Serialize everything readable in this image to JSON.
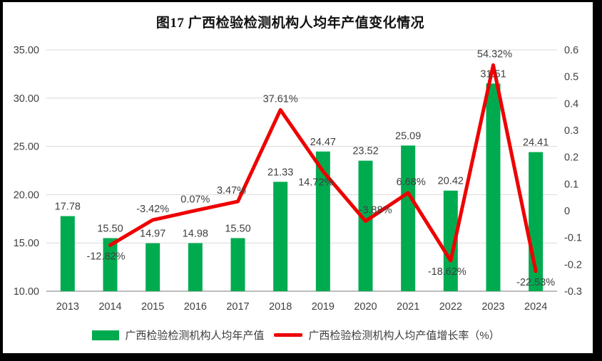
{
  "title": "图17  广西检验检测机构人均年产值变化情况",
  "legend": [
    {
      "swatch": "bar",
      "color": "#00AB50",
      "label": "广西检验检测机构人均年产值"
    },
    {
      "swatch": "line",
      "color": "#EE0000",
      "label": "广西检验检测机构人均产值增长率（%）"
    }
  ],
  "chart_data": {
    "type": "combo-bar-line",
    "title": "图17  广西检验检测机构人均年产值变化情况",
    "categories": [
      "2013",
      "2014",
      "2015",
      "2016",
      "2017",
      "2018",
      "2019",
      "2020",
      "2021",
      "2022",
      "2023",
      "2024"
    ],
    "series": [
      {
        "name": "广西检验检测机构人均年产值",
        "type": "bar",
        "axis": "left",
        "color": "#00AB50",
        "values": [
          17.78,
          15.5,
          14.97,
          14.98,
          15.5,
          21.33,
          24.47,
          23.52,
          25.09,
          20.42,
          31.51,
          24.41
        ],
        "data_labels": [
          "17.78",
          "15.50",
          "14.97",
          "14.98",
          "15.50",
          "21.33",
          "24.47",
          "23.52",
          "25.09",
          "20.42",
          "31.51",
          "24.41"
        ]
      },
      {
        "name": "广西检验检测机构人均产值增长率（%）",
        "type": "line",
        "axis": "right",
        "color": "#EE0000",
        "values": [
          null,
          -0.1282,
          -0.0342,
          0.0007,
          0.0347,
          0.3761,
          0.1472,
          -0.0388,
          0.0668,
          -0.1862,
          0.5432,
          -0.2253
        ],
        "data_labels": [
          null,
          "-12.82%",
          "-3.42%",
          "0.07%",
          "3.47%",
          "37.61%",
          "14.72%",
          "-3.88%",
          "6.68%",
          "-18.62%",
          "54.32%",
          "-22.53%"
        ],
        "label_side": [
          null,
          "below",
          "above",
          "above",
          "above",
          "above",
          "below",
          "above",
          "above",
          "below",
          "above",
          "below"
        ],
        "label_dx": [
          null,
          -6,
          0,
          0,
          -9,
          0,
          -10,
          14,
          4,
          -5,
          2,
          0
        ]
      }
    ],
    "left_axis": {
      "min": 10,
      "max": 35,
      "tick_labels": [
        "10.00",
        "15.00",
        "20.00",
        "25.00",
        "30.00",
        "35.00"
      ]
    },
    "right_axis": {
      "min": -0.3,
      "max": 0.6,
      "tick_labels": [
        "-0.3",
        "-0.2",
        "-0.1",
        "0",
        "0.1",
        "0.2",
        "0.3",
        "0.4",
        "0.5",
        "0.6"
      ]
    },
    "grid": "horizontal",
    "legend_position": "bottom",
    "colors": {
      "text": "#404040",
      "grid_line": "#D9D9D9",
      "axis_line": "#A6A6A6",
      "frame_border": "#000000"
    }
  }
}
